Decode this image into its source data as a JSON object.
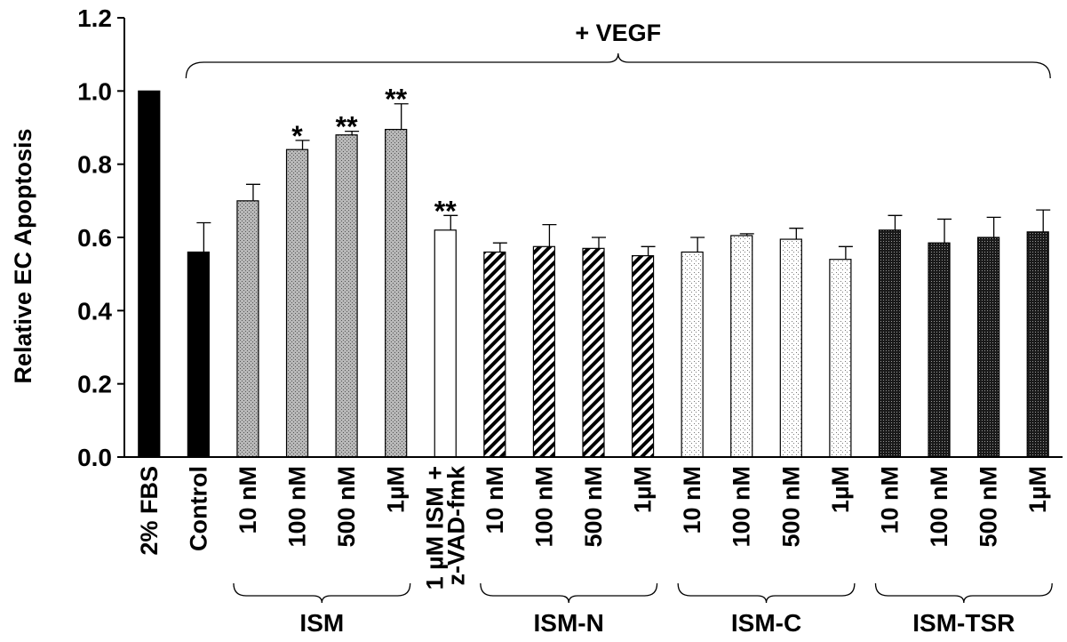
{
  "chart_data": {
    "type": "bar",
    "ylabel": "Relative EC Apoptosis",
    "ylim": [
      0,
      1.2
    ],
    "yticks": [
      "0.0",
      "0.2",
      "0.4",
      "0.6",
      "0.8",
      "1.0",
      "1.2"
    ],
    "annotation": "+ VEGF",
    "bars": [
      {
        "label": "2% FBS",
        "value": 1.0,
        "error": 0,
        "star": "",
        "fill": "black"
      },
      {
        "label": "Control",
        "value": 0.56,
        "error": 0.08,
        "star": "",
        "fill": "black"
      },
      {
        "label": "10 nM",
        "value": 0.7,
        "error": 0.045,
        "star": "",
        "fill": "ism"
      },
      {
        "label": "100 nM",
        "value": 0.84,
        "error": 0.025,
        "star": "*",
        "fill": "ism"
      },
      {
        "label": "500 nM",
        "value": 0.88,
        "error": 0.01,
        "star": "**",
        "fill": "ism"
      },
      {
        "label": "1µM",
        "value": 0.895,
        "error": 0.07,
        "star": "**",
        "fill": "ism"
      },
      {
        "label": "1 µM ISM +\nz-VAD-fmk",
        "value": 0.62,
        "error": 0.04,
        "star": "**",
        "fill": "white"
      },
      {
        "label": "10 nM",
        "value": 0.56,
        "error": 0.025,
        "star": "",
        "fill": "ismn"
      },
      {
        "label": "100 nM",
        "value": 0.575,
        "error": 0.06,
        "star": "",
        "fill": "ismn"
      },
      {
        "label": "500 nM",
        "value": 0.57,
        "error": 0.03,
        "star": "",
        "fill": "ismn"
      },
      {
        "label": "1µM",
        "value": 0.55,
        "error": 0.025,
        "star": "",
        "fill": "ismn"
      },
      {
        "label": "10 nM",
        "value": 0.56,
        "error": 0.04,
        "star": "",
        "fill": "ismc"
      },
      {
        "label": "100 nM",
        "value": 0.605,
        "error": 0.005,
        "star": "",
        "fill": "ismc"
      },
      {
        "label": "500 nM",
        "value": 0.595,
        "error": 0.03,
        "star": "",
        "fill": "ismc"
      },
      {
        "label": "1µM",
        "value": 0.54,
        "error": 0.035,
        "star": "",
        "fill": "ismc"
      },
      {
        "label": "10 nM",
        "value": 0.62,
        "error": 0.04,
        "star": "",
        "fill": "ismtsr"
      },
      {
        "label": "100 nM",
        "value": 0.585,
        "error": 0.065,
        "star": "",
        "fill": "ismtsr"
      },
      {
        "label": "500 nM",
        "value": 0.6,
        "error": 0.055,
        "star": "",
        "fill": "ismtsr"
      },
      {
        "label": "1µM",
        "value": 0.615,
        "error": 0.06,
        "star": "",
        "fill": "ismtsr"
      }
    ],
    "groups": [
      {
        "label": "ISM",
        "from": 2,
        "to": 5
      },
      {
        "label": "ISM-N",
        "from": 7,
        "to": 10
      },
      {
        "label": "ISM-C",
        "from": 11,
        "to": 14
      },
      {
        "label": "ISM-TSR",
        "from": 15,
        "to": 18
      }
    ],
    "vegf_from": 1,
    "vegf_to": 18
  }
}
